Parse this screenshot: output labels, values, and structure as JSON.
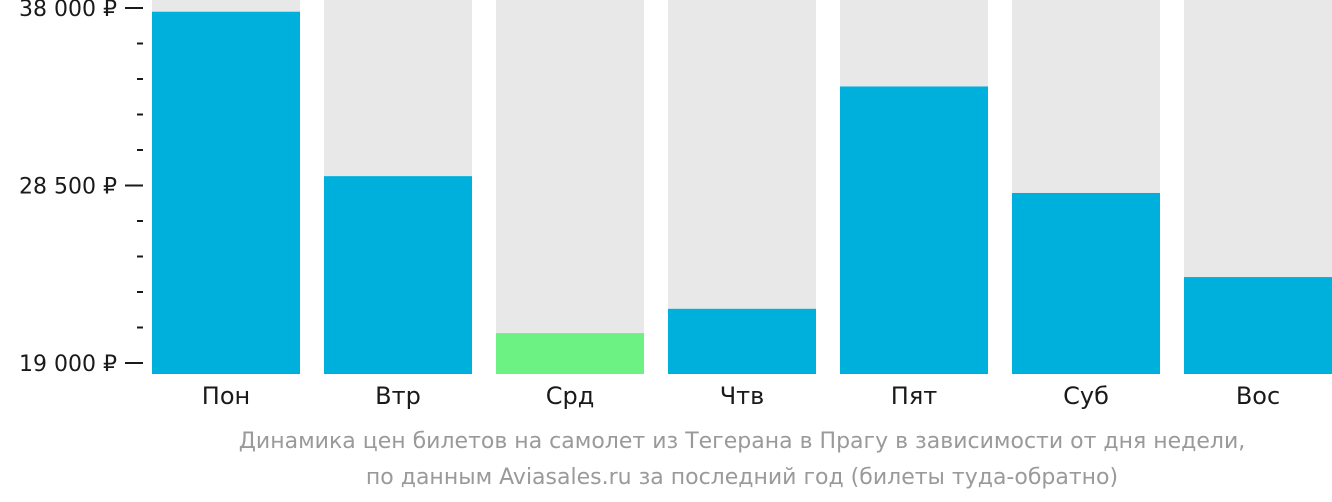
{
  "chart_data": {
    "type": "bar",
    "categories": [
      "Пон",
      "Втр",
      "Срд",
      "Чтв",
      "Пят",
      "Суб",
      "Вос"
    ],
    "values": [
      37800,
      29000,
      20600,
      21900,
      33800,
      28100,
      23600
    ],
    "ylim": [
      19000,
      38000
    ],
    "y_ticks": [
      {
        "value": 19000,
        "label": "19 000 ₽"
      },
      {
        "value": 28500,
        "label": "28 500 ₽"
      },
      {
        "value": 38000,
        "label": "38 000 ₽"
      }
    ],
    "minor_ticks_between": 4,
    "highlight_index": 2,
    "colors": {
      "bar": "#00b0dc",
      "highlight": "#6cf283",
      "background_bar": "#e8e8e8",
      "axis": "#1a1a1a"
    },
    "caption": [
      "Динамика цен билетов на самолет из Тегерана в Прагу в зависимости от дня недели,",
      "по данным Aviasales.ru за последний год (билеты туда-обратно)"
    ]
  }
}
